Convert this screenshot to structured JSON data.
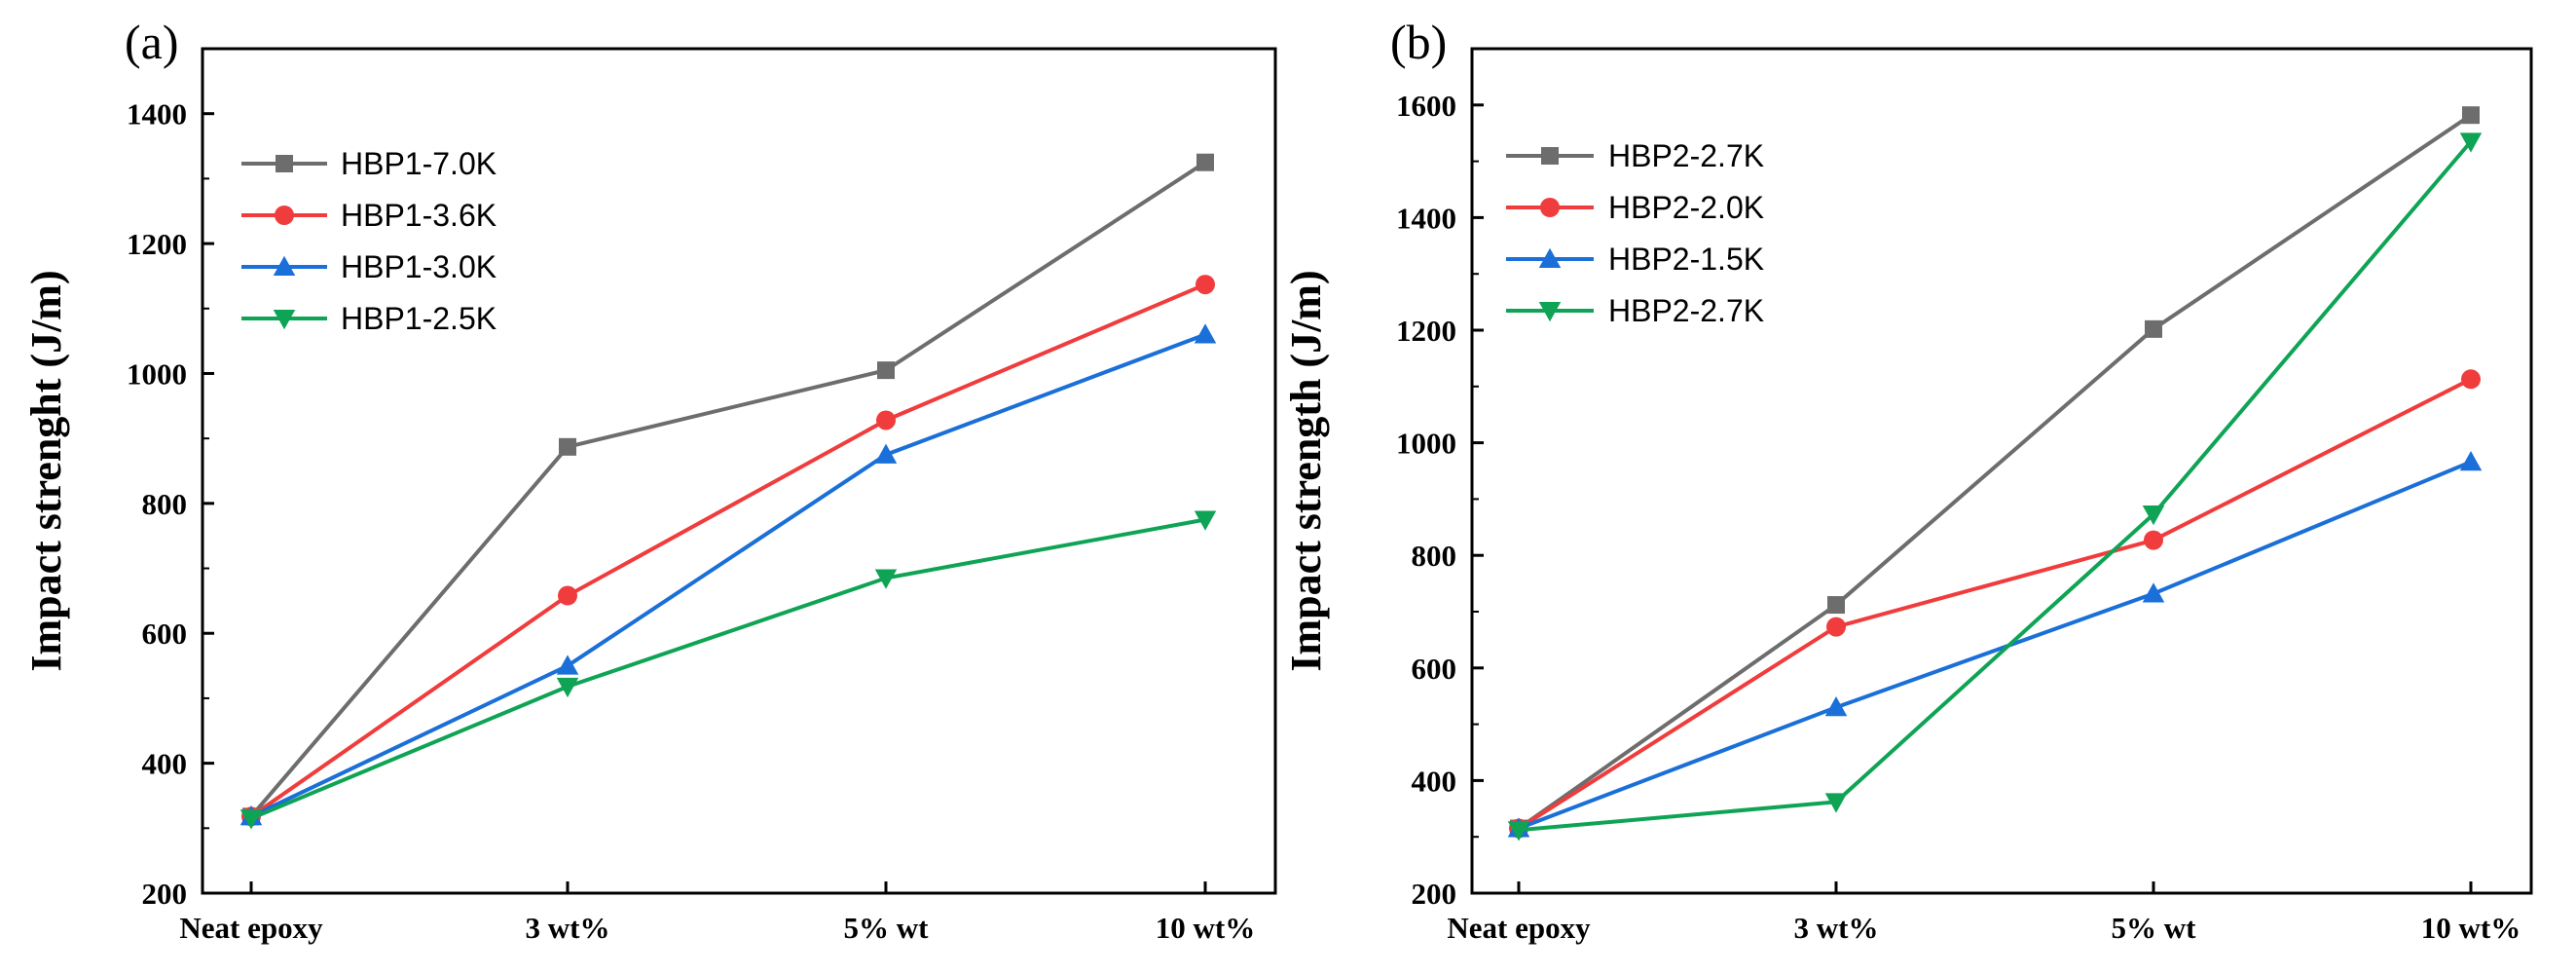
{
  "chart_data": [
    {
      "type": "line",
      "panel_label": "(a)",
      "xlabel": "",
      "ylabel": "Impact strenght (J/m)",
      "categories": [
        "Neat epoxy",
        "3 wt%",
        "5% wt",
        "10 wt%"
      ],
      "ylim": [
        200,
        1500
      ],
      "yticks": [
        200,
        400,
        600,
        800,
        1000,
        1200,
        1400
      ],
      "legend_position": "top-left",
      "grid": false,
      "series": [
        {
          "name": "HBP1-7.0K",
          "color": "#6d6d6d",
          "marker": "square",
          "values": [
            318,
            887,
            1005,
            1325
          ]
        },
        {
          "name": "HBP1-3.6K",
          "color": "#f03c3c",
          "marker": "circle",
          "values": [
            318,
            658,
            928,
            1137
          ]
        },
        {
          "name": "HBP1-3.0K",
          "color": "#1a6fd8",
          "marker": "triangle-up",
          "values": [
            318,
            550,
            875,
            1060
          ]
        },
        {
          "name": "HBP1-2.5K",
          "color": "#0fa455",
          "marker": "triangle-down",
          "values": [
            315,
            518,
            685,
            775
          ]
        }
      ]
    },
    {
      "type": "line",
      "panel_label": "(b)",
      "xlabel": "",
      "ylabel": "Impact strength (J/m)",
      "categories": [
        "Neat epoxy",
        "3 wt%",
        "5% wt",
        "10 wt%"
      ],
      "ylim": [
        200,
        1700
      ],
      "yticks": [
        200,
        400,
        600,
        800,
        1000,
        1200,
        1400,
        1600
      ],
      "legend_position": "top-left",
      "grid": false,
      "series": [
        {
          "name": "HBP2-2.7K",
          "color": "#6d6d6d",
          "marker": "square",
          "values": [
            315,
            712,
            1202,
            1582
          ]
        },
        {
          "name": "HBP2-2.0K",
          "color": "#f03c3c",
          "marker": "circle",
          "values": [
            315,
            673,
            827,
            1113
          ]
        },
        {
          "name": "HBP2-1.5K",
          "color": "#1a6fd8",
          "marker": "triangle-up",
          "values": [
            315,
            530,
            732,
            966
          ]
        },
        {
          "name": "HBP2-2.7K",
          "color": "#0fa455",
          "marker": "triangle-down",
          "values": [
            312,
            362,
            873,
            1535
          ]
        }
      ]
    }
  ]
}
